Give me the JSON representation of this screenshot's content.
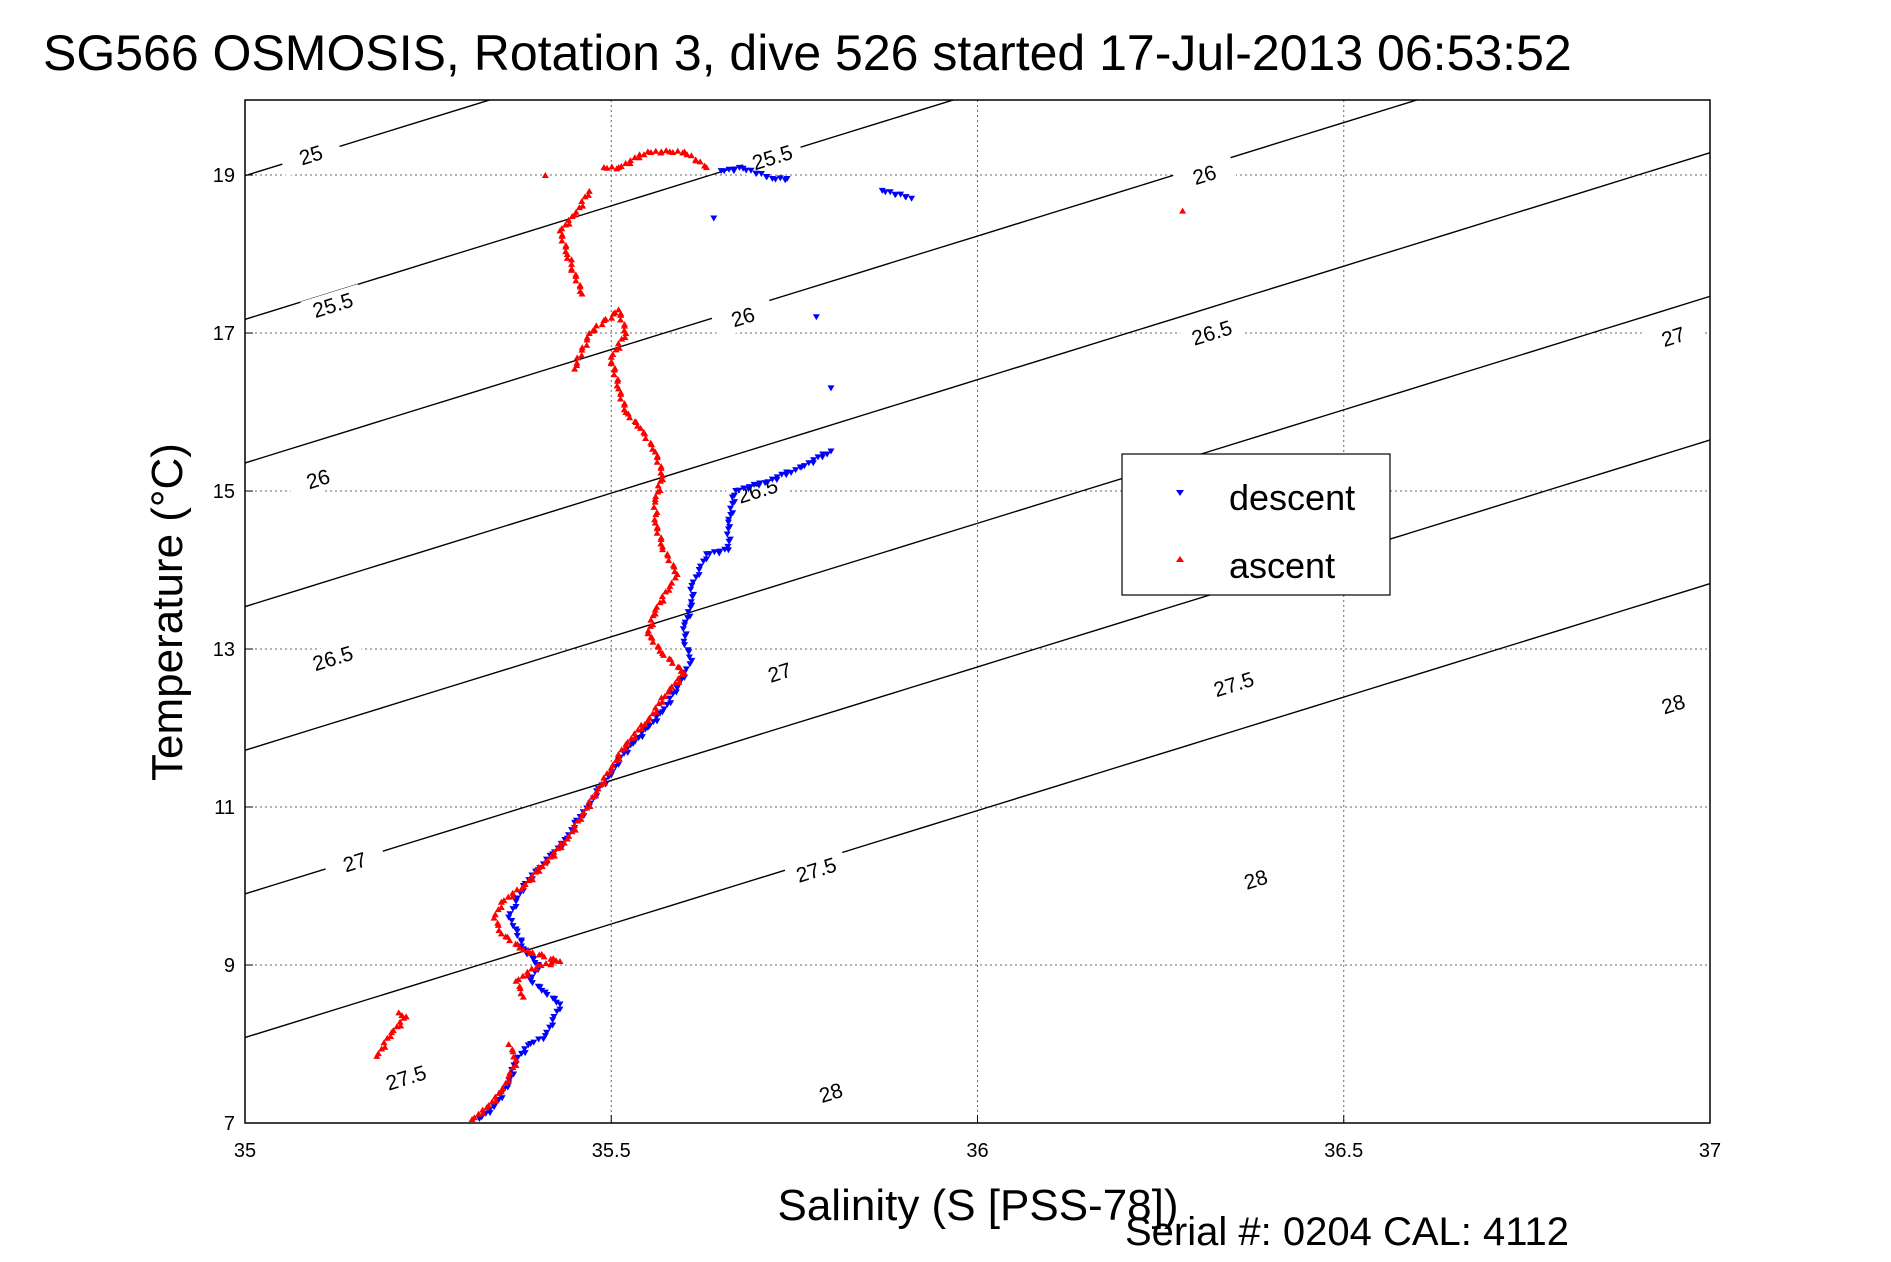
{
  "chart_data": {
    "type": "scatter",
    "title": "SG566 OSMOSIS, Rotation 3, dive 526 started 17-Jul-2013 06:53:52",
    "xlabel": "Salinity (S [PSS-78])",
    "ylabel": "Temperature (°C)",
    "xlim": [
      35,
      37
    ],
    "ylim": [
      7,
      19.95
    ],
    "x_ticks": [
      "35",
      "35.5",
      "36",
      "36.5",
      "37"
    ],
    "y_ticks": [
      "7",
      "9",
      "11",
      "13",
      "15",
      "17",
      "19"
    ],
    "grid": true,
    "legend_position": "right",
    "footer": "Serial #: 0204  CAL: 4112",
    "isopycnals": {
      "levels": [
        25,
        25.5,
        26,
        26.5,
        27,
        27.5,
        28
      ],
      "labels": [
        {
          "text": "25",
          "s": 35.09,
          "t": 19.25
        },
        {
          "text": "25.5",
          "s": 35.72,
          "t": 19.22
        },
        {
          "text": "25.5",
          "s": 35.12,
          "t": 17.35
        },
        {
          "text": "26",
          "s": 36.31,
          "t": 19.0
        },
        {
          "text": "26",
          "s": 35.68,
          "t": 17.2
        },
        {
          "text": "26",
          "s": 35.1,
          "t": 15.15
        },
        {
          "text": "26.5",
          "s": 36.32,
          "t": 17.0
        },
        {
          "text": "26.5",
          "s": 35.7,
          "t": 15.0
        },
        {
          "text": "26.5",
          "s": 35.12,
          "t": 12.88
        },
        {
          "text": "27",
          "s": 36.95,
          "t": 16.95
        },
        {
          "text": "27",
          "s": 35.73,
          "t": 12.7
        },
        {
          "text": "27",
          "s": 35.15,
          "t": 10.3
        },
        {
          "text": "27.5",
          "s": 36.35,
          "t": 12.55
        },
        {
          "text": "27.5",
          "s": 35.78,
          "t": 10.2
        },
        {
          "text": "27.5",
          "s": 35.22,
          "t": 7.57
        },
        {
          "text": "28",
          "s": 36.95,
          "t": 12.3
        },
        {
          "text": "28",
          "s": 36.38,
          "t": 10.08
        },
        {
          "text": "28",
          "s": 35.8,
          "t": 7.38
        }
      ]
    },
    "series": [
      {
        "name": "descent",
        "color": "#0000ff",
        "marker": "triangle-down",
        "points": [
          [
            35.32,
            7.05
          ],
          [
            35.34,
            7.2
          ],
          [
            35.36,
            7.5
          ],
          [
            35.37,
            7.8
          ],
          [
            35.39,
            8.0
          ],
          [
            35.41,
            8.1
          ],
          [
            35.42,
            8.3
          ],
          [
            35.43,
            8.5
          ],
          [
            35.41,
            8.65
          ],
          [
            35.39,
            8.8
          ],
          [
            35.4,
            9.0
          ],
          [
            35.38,
            9.2
          ],
          [
            35.37,
            9.45
          ],
          [
            35.36,
            9.6
          ],
          [
            35.37,
            9.8
          ],
          [
            35.38,
            10.0
          ],
          [
            35.4,
            10.2
          ],
          [
            35.42,
            10.4
          ],
          [
            35.44,
            10.6
          ],
          [
            35.45,
            10.8
          ],
          [
            35.47,
            11.0
          ],
          [
            35.48,
            11.2
          ],
          [
            35.5,
            11.4
          ],
          [
            35.51,
            11.6
          ],
          [
            35.53,
            11.8
          ],
          [
            35.55,
            12.0
          ],
          [
            35.57,
            12.2
          ],
          [
            35.59,
            12.5
          ],
          [
            35.6,
            12.7
          ],
          [
            35.61,
            12.85
          ],
          [
            35.6,
            13.05
          ],
          [
            35.6,
            13.3
          ],
          [
            35.61,
            13.55
          ],
          [
            35.61,
            13.8
          ],
          [
            35.62,
            14.0
          ],
          [
            35.63,
            14.2
          ],
          [
            35.66,
            14.25
          ],
          [
            35.66,
            14.6
          ],
          [
            35.67,
            15.0
          ],
          [
            35.71,
            15.1
          ],
          [
            35.76,
            15.3
          ],
          [
            35.8,
            15.5
          ],
          [
            35.8,
            16.3
          ],
          [
            35.78,
            17.2
          ],
          [
            35.64,
            18.45
          ],
          [
            35.65,
            19.05
          ],
          [
            35.68,
            19.08
          ],
          [
            35.72,
            18.95
          ],
          [
            35.74,
            18.95
          ],
          [
            35.87,
            18.8
          ],
          [
            35.91,
            18.7
          ]
        ]
      },
      {
        "name": "ascent",
        "color": "#ff0000",
        "marker": "triangle-up",
        "points": [
          [
            35.31,
            7.05
          ],
          [
            35.33,
            7.2
          ],
          [
            35.35,
            7.4
          ],
          [
            35.36,
            7.6
          ],
          [
            35.37,
            7.8
          ],
          [
            35.36,
            8.0
          ],
          [
            35.18,
            7.85
          ],
          [
            35.2,
            8.15
          ],
          [
            35.22,
            8.35
          ],
          [
            35.21,
            8.4
          ],
          [
            35.38,
            8.6
          ],
          [
            35.37,
            8.8
          ],
          [
            35.4,
            9.0
          ],
          [
            35.43,
            9.05
          ],
          [
            35.38,
            9.2
          ],
          [
            35.35,
            9.4
          ],
          [
            35.34,
            9.6
          ],
          [
            35.35,
            9.8
          ],
          [
            35.38,
            10.0
          ],
          [
            35.41,
            10.3
          ],
          [
            35.44,
            10.6
          ],
          [
            35.46,
            10.9
          ],
          [
            35.48,
            11.2
          ],
          [
            35.5,
            11.5
          ],
          [
            35.52,
            11.8
          ],
          [
            35.55,
            12.1
          ],
          [
            35.58,
            12.5
          ],
          [
            35.6,
            12.7
          ],
          [
            35.57,
            12.95
          ],
          [
            35.55,
            13.2
          ],
          [
            35.56,
            13.5
          ],
          [
            35.58,
            13.8
          ],
          [
            35.59,
            13.95
          ],
          [
            35.57,
            14.3
          ],
          [
            35.56,
            14.6
          ],
          [
            35.56,
            14.9
          ],
          [
            35.57,
            15.2
          ],
          [
            35.56,
            15.5
          ],
          [
            35.54,
            15.8
          ],
          [
            35.52,
            16.0
          ],
          [
            35.51,
            16.3
          ],
          [
            35.5,
            16.7
          ],
          [
            35.52,
            17.0
          ],
          [
            35.51,
            17.3
          ],
          [
            35.47,
            17.0
          ],
          [
            35.45,
            16.55
          ],
          [
            35.46,
            17.5
          ],
          [
            35.44,
            18.0
          ],
          [
            35.43,
            18.3
          ],
          [
            35.45,
            18.5
          ],
          [
            35.47,
            18.8
          ],
          [
            35.41,
            19.0
          ],
          [
            35.49,
            19.1
          ],
          [
            35.51,
            19.1
          ],
          [
            35.55,
            19.3
          ],
          [
            35.58,
            19.3
          ],
          [
            35.6,
            19.3
          ],
          [
            35.63,
            19.1
          ],
          [
            36.28,
            18.55
          ]
        ]
      }
    ]
  }
}
